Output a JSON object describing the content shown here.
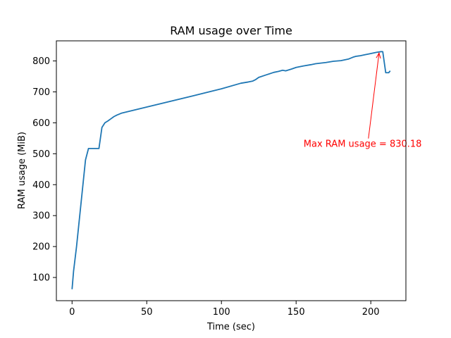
{
  "chart_data": {
    "type": "line",
    "title": "RAM usage over Time",
    "xlabel": "Time (sec)",
    "ylabel": "RAM usage (MiB)",
    "xlim": [
      -10.5,
      223.5
    ],
    "ylim": [
      25,
      865
    ],
    "xticks": [
      0,
      50,
      100,
      150,
      200
    ],
    "yticks": [
      100,
      200,
      300,
      400,
      500,
      600,
      700,
      800
    ],
    "grid": false,
    "series": [
      {
        "color": "#1f77b4",
        "x": [
          0,
          1,
          3,
          6,
          9,
          11,
          15,
          18,
          20,
          22,
          24,
          26,
          28,
          30,
          33,
          50,
          80,
          100,
          113,
          118,
          121,
          123,
          125,
          130,
          135,
          138,
          141,
          143,
          147,
          150,
          155,
          160,
          163,
          170,
          175,
          180,
          185,
          188,
          190,
          193,
          196,
          199,
          202,
          204,
          207,
          208,
          210,
          212,
          213
        ],
        "y": [
          62,
          120,
          200,
          340,
          480,
          517,
          517,
          517,
          585,
          600,
          606,
          613,
          620,
          625,
          631,
          651,
          686,
          710,
          728,
          732,
          735,
          740,
          747,
          755,
          763,
          766,
          770,
          768,
          774,
          779,
          784,
          788,
          791,
          795,
          799,
          801,
          806,
          812,
          815,
          817,
          820,
          823,
          826,
          828,
          830.18,
          830,
          762,
          762,
          768
        ]
      }
    ],
    "annotation": {
      "text": "Max RAM usage = 830.18",
      "color": "#ff0000",
      "point": [
        206,
        830.18
      ],
      "text_pos": [
        155,
        522
      ]
    }
  }
}
